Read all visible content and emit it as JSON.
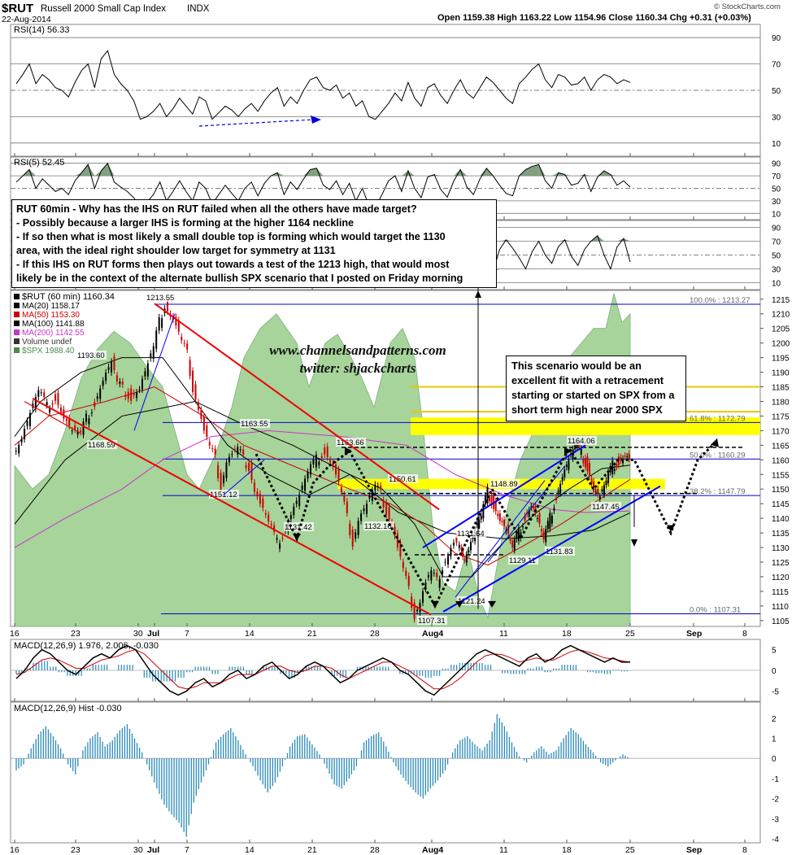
{
  "header": {
    "symbol": "$RUT",
    "name": "Russell 2000 Small Cap Index",
    "exchange": "INDX",
    "date": "22-Aug-2014",
    "ohlc": "Open 1159.38  High 1163.22  Low 1154.96  Close 1160.34  Chg +0.31 (+0.03%)",
    "watermark": "© StockCharts.com"
  },
  "colors": {
    "price_up": "#000000",
    "price_down": "#cc0000",
    "ma20": "#000000",
    "ma50": "#cc0000",
    "ma100": "#000000",
    "ma200": "#cc33cc",
    "spx_fill": "#a6d49a",
    "fib": "#0000cc",
    "band": "#ffff00",
    "macd_hist": "#2b8ab8"
  },
  "note_box": {
    "lines": [
      "RUT 60min - Why has the IHS on RUT failed when all the others have made target?",
      "- Possibly because a larger IHS is forming at the higher 1164 neckline",
      "- If so then what is most likely a small double top is forming which would target the 1130",
      "area, with the ideal right shoulder low target for symmetry at 1131",
      "- If this IHS on RUT forms then plays out towards a test of the 1213 high, that would most",
      "likely be in the context of the alternate bullish SPX scenario that I posted on Friday morning"
    ]
  },
  "scenario_box": {
    "lines": [
      "This scenario would be an",
      "excellent fit with a retracement",
      "starting or started on SPX from a",
      "short term high near 2000 SPX"
    ]
  },
  "watermark_text": {
    "line1": "www.channelsandpatterns.com",
    "line2": "twitter: shjackcharts"
  },
  "x_axis": {
    "ticks": [
      "16",
      "23",
      "30",
      "Jul",
      "7",
      "14",
      "21",
      "28",
      "Aug4",
      "11",
      "18",
      "25",
      "Sep",
      "8"
    ]
  },
  "chart_data": [
    {
      "type": "line",
      "panel": "RSI(14)",
      "title": "RSI(14) 56.33",
      "ylim": [
        0,
        100
      ],
      "yticks": [
        "90",
        "70",
        "50",
        "30",
        "10"
      ],
      "series": [
        {
          "name": "RSI(14)",
          "values": [
            55,
            62,
            70,
            55,
            62,
            58,
            52,
            50,
            45,
            56,
            65,
            70,
            52,
            74,
            80,
            62,
            55,
            50,
            42,
            28,
            30,
            34,
            40,
            30,
            36,
            44,
            38,
            32,
            45,
            42,
            28,
            33,
            38,
            35,
            30,
            36,
            40,
            34,
            42,
            48,
            52,
            38,
            45,
            40,
            50,
            58,
            60,
            52,
            50,
            54,
            44,
            48,
            38,
            42,
            30,
            28,
            34,
            40,
            48,
            42,
            56,
            44,
            38,
            52,
            55,
            46,
            40,
            50,
            58,
            48,
            44,
            52,
            60,
            56,
            50,
            44,
            40,
            55,
            60,
            66,
            70,
            58,
            52,
            62,
            60,
            54,
            55,
            60,
            50,
            58,
            62,
            60,
            55,
            58,
            56
          ]
        }
      ]
    },
    {
      "type": "line",
      "panel": "RSI(5)",
      "title": "RSI(5) 52.45",
      "ylim": [
        0,
        100
      ],
      "yticks": [
        "90",
        "70",
        "50",
        "30",
        "10"
      ],
      "series": [
        {
          "name": "RSI(5)",
          "values": [
            60,
            70,
            80,
            50,
            65,
            55,
            45,
            50,
            40,
            62,
            75,
            88,
            50,
            78,
            90,
            60,
            52,
            45,
            35,
            20,
            28,
            40,
            60,
            30,
            45,
            62,
            45,
            30,
            60,
            50,
            25,
            40,
            55,
            42,
            30,
            50,
            60,
            38,
            58,
            70,
            75,
            40,
            60,
            48,
            65,
            80,
            82,
            55,
            48,
            62,
            40,
            58,
            30,
            50,
            22,
            20,
            40,
            62,
            70,
            45,
            78,
            50,
            35,
            68,
            72,
            48,
            36,
            62,
            80,
            52,
            40,
            65,
            82,
            70,
            55,
            42,
            38,
            70,
            80,
            85,
            88,
            62,
            50,
            75,
            72,
            55,
            58,
            72,
            45,
            68,
            78,
            72,
            55,
            62,
            52
          ]
        }
      ]
    },
    {
      "type": "line",
      "panel": "third indicator",
      "title": "",
      "ylim": [
        0,
        100
      ],
      "yticks": [
        "90",
        "70",
        "50",
        "30",
        "10"
      ],
      "series": [
        {
          "name": "indicator",
          "values": [
            60,
            62,
            58,
            55,
            52,
            50,
            48,
            45,
            42,
            40,
            38,
            36,
            35,
            40,
            45,
            52,
            60,
            68,
            78,
            82,
            76,
            70,
            64,
            58,
            55,
            52,
            50,
            48,
            52,
            56,
            60,
            64,
            68,
            72,
            75,
            70,
            64,
            58,
            55,
            52,
            50,
            48,
            46,
            44,
            42,
            40,
            38,
            40,
            44,
            50,
            56,
            62,
            70,
            78,
            84,
            80,
            74,
            70,
            60,
            55,
            72,
            60,
            48,
            40,
            25,
            15,
            42,
            62,
            50,
            30,
            45,
            60,
            48,
            25,
            58,
            72,
            60,
            46,
            30,
            55,
            70,
            50,
            38,
            62,
            72,
            48,
            35,
            58,
            70,
            78,
            50,
            30,
            62,
            74,
            40
          ]
        }
      ]
    },
    {
      "type": "line",
      "panel": "price",
      "title": "$RUT (60 min) 1160.34",
      "ylim": [
        1103,
        1218
      ],
      "yticks": [
        "1215",
        "1210",
        "1205",
        "1200",
        "1195",
        "1190",
        "1185",
        "1180",
        "1175",
        "1170",
        "1165",
        "1160",
        "1155",
        "1150",
        "1145",
        "1140",
        "1135",
        "1130",
        "1125",
        "1120",
        "1115",
        "1110",
        "1105"
      ],
      "legend": [
        "$RUT (60 min) 1160.34",
        "MA(20) 1158.17",
        "MA(50) 1153.30",
        "MA(100) 1141.88",
        "MA(200) 1142.55",
        "Volume undef",
        "$SPX 1988.40"
      ],
      "x_range": [
        0,
        160
      ],
      "series": [
        {
          "name": "$RUT",
          "values": [
            [
              0,
              1162
            ],
            [
              3,
              1168
            ],
            [
              6,
              1176
            ],
            [
              9,
              1183
            ],
            [
              12,
              1178
            ],
            [
              15,
              1182
            ],
            [
              18,
              1175
            ],
            [
              21,
              1170
            ],
            [
              24,
              1168.59
            ],
            [
              26,
              1174
            ],
            [
              29,
              1180
            ],
            [
              32,
              1188
            ],
            [
              35,
              1193.6
            ],
            [
              37,
              1186
            ],
            [
              39,
              1184
            ],
            [
              42,
              1182
            ],
            [
              45,
              1185
            ],
            [
              48,
              1193
            ],
            [
              50,
              1198
            ],
            [
              52,
              1207
            ],
            [
              54,
              1213.55
            ],
            [
              56,
              1210
            ],
            [
              58,
              1206
            ],
            [
              60,
              1200
            ],
            [
              62,
              1196
            ],
            [
              64,
              1185
            ],
            [
              66,
              1178
            ],
            [
              68,
              1170
            ],
            [
              70,
              1164
            ],
            [
              72,
              1160
            ],
            [
              74,
              1151.12
            ],
            [
              76,
              1160
            ],
            [
              78,
              1162
            ],
            [
              80,
              1163.55
            ],
            [
              82,
              1160
            ],
            [
              84,
              1158
            ],
            [
              86,
              1150
            ],
            [
              88,
              1145
            ],
            [
              91,
              1138
            ],
            [
              94,
              1131.42
            ],
            [
              96,
              1135
            ],
            [
              99,
              1142
            ],
            [
              102,
              1148
            ],
            [
              105,
              1155
            ],
            [
              108,
              1160
            ],
            [
              111,
              1163.66
            ],
            [
              113,
              1160
            ],
            [
              115,
              1155
            ],
            [
              117,
              1148
            ],
            [
              119,
              1140
            ],
            [
              121,
              1132.16
            ],
            [
              123,
              1140
            ],
            [
              126,
              1145
            ],
            [
              129,
              1150.61
            ],
            [
              131,
              1148
            ],
            [
              133,
              1143
            ],
            [
              135,
              1138
            ],
            [
              137,
              1130
            ],
            [
              139,
              1122
            ],
            [
              141,
              1115
            ],
            [
              143,
              1107.31
            ],
            [
              145,
              1112
            ],
            [
              147,
              1118
            ],
            [
              149,
              1121.24
            ],
            [
              151,
              1118
            ],
            [
              153,
              1124
            ],
            [
              155,
              1128
            ],
            [
              157,
              1131.64
            ],
            [
              159,
              1130
            ],
            [
              160,
              1125
            ]
          ]
        },
        {
          "name": "$RUT (cont.)",
          "values": [
            [
              0,
              1125
            ],
            [
              3,
              1130
            ],
            [
              6,
              1136
            ],
            [
              9,
              1140
            ],
            [
              12,
              1148.89
            ],
            [
              15,
              1145
            ],
            [
              18,
              1140
            ],
            [
              21,
              1136
            ],
            [
              24,
              1129.11
            ],
            [
              27,
              1135
            ],
            [
              30,
              1141
            ],
            [
              33,
              1145
            ],
            [
              36,
              1140
            ],
            [
              39,
              1131.83
            ],
            [
              42,
              1140
            ],
            [
              45,
              1148
            ],
            [
              48,
              1155
            ],
            [
              51,
              1160
            ],
            [
              54,
              1164.06
            ],
            [
              57,
              1162
            ],
            [
              60,
              1158
            ],
            [
              63,
              1150
            ],
            [
              66,
              1147.45
            ],
            [
              69,
              1152
            ],
            [
              72,
              1158
            ],
            [
              75,
              1160
            ],
            [
              78,
              1162
            ],
            [
              80,
              1160.34
            ]
          ]
        }
      ],
      "levels": [
        {
          "name": "100.0%",
          "value": 1213.27,
          "label": "100.0% : 1213.27"
        },
        {
          "name": "61.8%",
          "value": 1172.79,
          "label": "61.8% : 1172.79"
        },
        {
          "name": "50.0%",
          "value": 1160.29,
          "label": "50.0% : 1160.29"
        },
        {
          "name": "38.2%",
          "value": 1147.79,
          "label": "38.2% : 1147.79"
        },
        {
          "name": "0.0%",
          "value": 1107.31,
          "label": "0.0% : 1107.31"
        }
      ],
      "price_labels": [
        "1213.55",
        "1193.60",
        "1168.59",
        "1163.55",
        "1151.12",
        "1131.42",
        "1163.66",
        "1132.16",
        "1150.61",
        "1107.31",
        "1121.24",
        "1131.64",
        "1148.89",
        "1129.11",
        "1131.83",
        "1164.06",
        "1147.45"
      ]
    },
    {
      "type": "line",
      "panel": "MACD",
      "title": "MACD(12,26,9) 1.976, 2.006, -0.030",
      "ylim": [
        -7.5,
        7.5
      ],
      "yticks": [
        "5",
        "0",
        "-5"
      ],
      "series": [
        {
          "name": "MACD",
          "values": [
            -2,
            0,
            3,
            5,
            4,
            2,
            0,
            -1,
            1,
            3,
            4,
            3,
            5,
            6,
            5,
            2,
            -1,
            -3,
            -5,
            -6,
            -5,
            -3,
            -2,
            -4,
            -3,
            -1,
            0,
            -2,
            -1,
            1,
            2,
            0,
            -2,
            -1,
            1,
            2,
            1,
            -1,
            -3,
            -2,
            0,
            1,
            2,
            3,
            2,
            0,
            -1,
            -3,
            -5,
            -6,
            -4,
            -2,
            0,
            2,
            4,
            5,
            4,
            3,
            2,
            1,
            3,
            4,
            2,
            3,
            5,
            6,
            5,
            4,
            3,
            2,
            3,
            2,
            2
          ]
        },
        {
          "name": "Signal",
          "values": [
            -1,
            -0.5,
            1,
            2.5,
            3,
            2.5,
            1.5,
            0.5,
            0.5,
            1.5,
            2.5,
            3,
            3.5,
            4.5,
            5,
            4,
            2,
            0,
            -2,
            -4,
            -4.5,
            -4,
            -3,
            -3,
            -3,
            -2,
            -1,
            -1,
            -1,
            0,
            1,
            1,
            0,
            -0.5,
            0,
            1,
            1,
            0.5,
            -1,
            -2,
            -1,
            0,
            1,
            2,
            2,
            1,
            0,
            -1.5,
            -3,
            -4.5,
            -4.5,
            -3.5,
            -2,
            0,
            2,
            3.5,
            4,
            3.8,
            3,
            2,
            2.5,
            3,
            2.5,
            2.5,
            3.5,
            4.5,
            5,
            4.5,
            3.8,
            3,
            2.8,
            2.3,
            2
          ]
        }
      ]
    },
    {
      "type": "bar",
      "panel": "MACD Hist",
      "title": "MACD(12,26,9) Hist -0.030",
      "ylim": [
        -4.2,
        2.8
      ],
      "yticks": [
        "2",
        "1",
        "0",
        "-1",
        "-2",
        "-3",
        "-4"
      ],
      "values": [
        -0.6,
        -0.3,
        0.5,
        1.2,
        1.6,
        1.1,
        0.5,
        -0.3,
        -0.8,
        0.4,
        1.0,
        1.3,
        0.6,
        0.9,
        1.4,
        1.7,
        1.0,
        0.3,
        -0.6,
        -1.5,
        -2.3,
        -2.8,
        -3.2,
        -3.9,
        -2.2,
        -1.2,
        -0.3,
        0.8,
        1.2,
        1.5,
        0.9,
        0.2,
        -0.4,
        -1.1,
        -1.7,
        -1.2,
        -0.4,
        0.6,
        1.1,
        1.2,
        0.7,
        0.2,
        -0.5,
        -1.3,
        -1.5,
        -1.0,
        -0.4,
        0.8,
        1.1,
        1.3,
        0.6,
        -0.2,
        -0.8,
        -1.3,
        -1.7,
        -2.0,
        -1.5,
        -1.1,
        -0.6,
        0.3,
        0.9,
        1.1,
        0.7,
        0.4,
        0.9,
        2.2,
        1.6,
        0.8,
        0.1,
        -0.2,
        0.3,
        0.6,
        0.2,
        0.4,
        1.0,
        1.5,
        1.2,
        0.7,
        0.3,
        -0.2,
        -0.4,
        -0.1,
        0.2,
        0.0
      ]
    }
  ]
}
